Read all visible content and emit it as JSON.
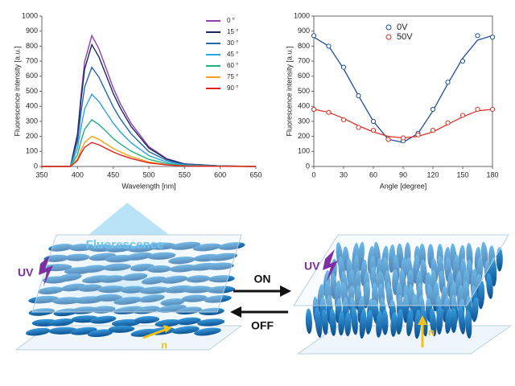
{
  "chart_data": [
    {
      "type": "line",
      "x": [
        350,
        390,
        400,
        405,
        410,
        420,
        430,
        440,
        450,
        460,
        475,
        500,
        525,
        550,
        600,
        650
      ],
      "xlim": [
        350,
        650
      ],
      "xticks": [
        350,
        400,
        450,
        500,
        550,
        600,
        650
      ],
      "ylim": [
        0,
        1000
      ],
      "yticks": [
        0,
        100,
        200,
        300,
        400,
        500,
        600,
        700,
        800,
        900,
        1000
      ],
      "x_label": "Wavelength [nm]",
      "y_label": "Fluorescence intensity [a.u.]",
      "series": [
        {
          "name": "0 °",
          "color": "#8e3fb0",
          "values": [
            0,
            0,
            218,
            479,
            696,
            870,
            783,
            653,
            522,
            418,
            287,
            131,
            52,
            17,
            4,
            0
          ]
        },
        {
          "name": "15 °",
          "color": "#1b2a5e",
          "values": [
            0,
            0,
            203,
            446,
            648,
            810,
            729,
            608,
            486,
            389,
            267,
            122,
            49,
            16,
            4,
            0
          ]
        },
        {
          "name": "30 °",
          "color": "#2466b0",
          "values": [
            0,
            0,
            165,
            363,
            528,
            660,
            594,
            495,
            396,
            317,
            218,
            99,
            40,
            13,
            3,
            0
          ]
        },
        {
          "name": "45 °",
          "color": "#27a6de",
          "values": [
            0,
            0,
            120,
            264,
            384,
            480,
            432,
            360,
            288,
            230,
            158,
            72,
            29,
            10,
            2,
            0
          ]
        },
        {
          "name": "60 °",
          "color": "#22b07f",
          "values": [
            0,
            0,
            78,
            171,
            248,
            310,
            279,
            233,
            186,
            149,
            102,
            47,
            19,
            6,
            2,
            0
          ]
        },
        {
          "name": "75 °",
          "color": "#f2a51a",
          "values": [
            0,
            0,
            50,
            110,
            160,
            200,
            180,
            150,
            120,
            96,
            66,
            30,
            12,
            4,
            1,
            0
          ]
        },
        {
          "name": "90 °",
          "color": "#e0221c",
          "values": [
            0,
            0,
            40,
            88,
            128,
            160,
            144,
            120,
            96,
            77,
            53,
            24,
            10,
            3,
            1,
            0
          ]
        }
      ]
    },
    {
      "type": "scatter",
      "x": [
        0,
        15,
        30,
        45,
        60,
        75,
        90,
        105,
        120,
        135,
        150,
        165,
        180
      ],
      "xlim": [
        0,
        180
      ],
      "xticks": [
        0,
        30,
        60,
        90,
        120,
        150,
        180
      ],
      "ylim": [
        0,
        1000
      ],
      "yticks": [
        0,
        100,
        200,
        300,
        400,
        500,
        600,
        700,
        800,
        900,
        1000
      ],
      "x_label": "Angle [degree]",
      "y_label": "Fluorescence intensity [a.u.]",
      "series": [
        {
          "name": "0V",
          "color": "#1f4e9c",
          "values": [
            870,
            800,
            660,
            470,
            300,
            180,
            170,
            220,
            380,
            560,
            700,
            870,
            860
          ],
          "fit_values": [
            860,
            800,
            650,
            470,
            300,
            180,
            160,
            220,
            370,
            550,
            720,
            840,
            870
          ]
        },
        {
          "name": "50V",
          "color": "#d9342b",
          "values": [
            380,
            360,
            310,
            260,
            240,
            180,
            190,
            210,
            240,
            290,
            340,
            380,
            380
          ],
          "fit_values": [
            380,
            360,
            320,
            270,
            230,
            200,
            190,
            200,
            230,
            280,
            330,
            370,
            380
          ]
        }
      ]
    }
  ],
  "diagram": {
    "fluorescence": "Fluorescence",
    "left": {
      "uv": "UV",
      "director": "n"
    },
    "switch": {
      "on": "ON",
      "off": "OFF"
    },
    "right": {
      "uv": "UV",
      "director": "n"
    }
  }
}
